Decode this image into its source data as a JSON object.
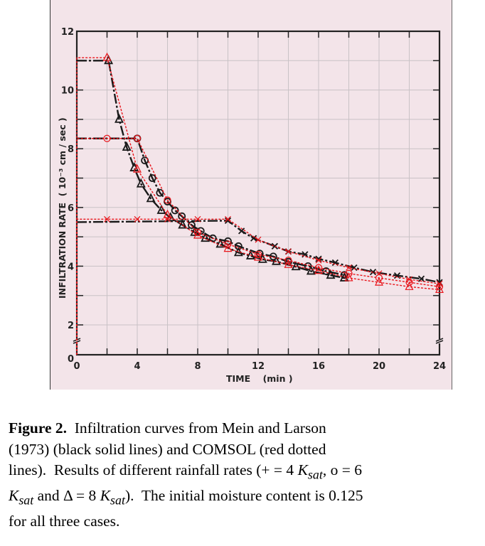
{
  "chart_data": {
    "type": "line",
    "title": "",
    "xlabel": "TIME    (min )",
    "ylabel": "INFILTRATION RATE  ( 10⁻³ cm / sec )",
    "xlim": [
      0,
      24
    ],
    "ylim": [
      0,
      12
    ],
    "y_axis_break": true,
    "grid": true,
    "x_ticks": [
      "0",
      "4",
      "8",
      "12",
      "16",
      "20",
      "24"
    ],
    "y_ticks": [
      "0",
      "2",
      "4",
      "6",
      "8",
      "10",
      "12"
    ],
    "colors": {
      "mein_larson": "#1a1a1a",
      "comsol": "#e8141a",
      "background": "#f3e4e9",
      "grid": "#c9c2c6"
    },
    "series": [
      {
        "source": "Mein and Larson",
        "case": "+ = 4 Ksat",
        "marker": "cross",
        "x": [
          0,
          10,
          10.9,
          11.7,
          13.1,
          14,
          15.1,
          16,
          17.1,
          18.35,
          19.6,
          21.2,
          22.8,
          24
        ],
        "y": [
          5.5,
          5.55,
          5.2,
          4.95,
          4.68,
          4.5,
          4.4,
          4.25,
          4.12,
          3.95,
          3.8,
          3.68,
          3.57,
          3.45
        ]
      },
      {
        "source": "Mein and Larson",
        "case": "o = 6 Ksat",
        "marker": "circle",
        "x": [
          0,
          4,
          4.5,
          5,
          5.5,
          6,
          6.5,
          6.95,
          7.6,
          8.2,
          9,
          10,
          10.7,
          12.1,
          13,
          14,
          15.3,
          16.5,
          17.7
        ],
        "y": [
          8.35,
          8.35,
          7.6,
          7.0,
          6.5,
          6.2,
          5.9,
          5.7,
          5.4,
          5.2,
          4.95,
          4.85,
          4.68,
          4.43,
          4.33,
          4.15,
          4.0,
          3.83,
          3.7
        ]
      },
      {
        "source": "Mein and Larson",
        "case": "Δ = 8 Ksat",
        "marker": "triangle",
        "x": [
          0,
          2.1,
          2.8,
          3.3,
          3.8,
          4.25,
          4.9,
          5.6,
          6.2,
          7,
          7.8,
          8.5,
          9.5,
          10.7,
          11.5,
          12.3,
          13.2,
          14.5,
          15.5,
          16.8,
          17.7
        ],
        "y": [
          11.0,
          11.0,
          9.0,
          8.05,
          7.35,
          6.8,
          6.3,
          5.9,
          5.65,
          5.4,
          5.15,
          4.95,
          4.75,
          4.46,
          4.35,
          4.23,
          4.16,
          3.98,
          3.83,
          3.69,
          3.6
        ]
      },
      {
        "source": "COMSOL",
        "case": "+ = 4 Ksat",
        "marker": "cross",
        "x": [
          0,
          2,
          4,
          6,
          8,
          10,
          12,
          14,
          16,
          18,
          20,
          22,
          24
        ],
        "y": [
          5.6,
          5.6,
          5.6,
          5.6,
          5.6,
          5.6,
          4.9,
          4.5,
          4.2,
          3.95,
          3.75,
          3.55,
          3.4
        ]
      },
      {
        "source": "COMSOL",
        "case": "o = 6 Ksat",
        "marker": "circle",
        "x": [
          0,
          2,
          4,
          6,
          8,
          10,
          12,
          14,
          16,
          18,
          20,
          22,
          24
        ],
        "y": [
          8.35,
          8.35,
          8.35,
          6.25,
          5.15,
          4.75,
          4.4,
          4.2,
          3.95,
          3.75,
          3.6,
          3.45,
          3.3
        ]
      },
      {
        "source": "COMSOL",
        "case": "Δ = 8 Ksat",
        "marker": "triangle",
        "x": [
          0,
          2,
          4,
          6,
          8,
          10,
          12,
          14,
          16,
          18,
          20,
          22,
          24
        ],
        "y": [
          11.1,
          11.1,
          7.3,
          5.75,
          5.05,
          4.6,
          4.3,
          4.05,
          3.85,
          3.6,
          3.45,
          3.3,
          3.2
        ]
      }
    ]
  },
  "caption": {
    "label": "Figure 2.",
    "line1": "  Infiltration curves from Mein and Larson",
    "line2": "(1973) (black solid lines) and COMSOL (red dotted",
    "line3a": "lines).  Results of different rainfall rates (+ = 4 ",
    "K": "K",
    "sat": "sat",
    "line3b": ", o = 6",
    "line4b": " and Δ = 8 ",
    "line4c": ").  The initial moisture content is 0.125",
    "line5": "for all three cases."
  }
}
